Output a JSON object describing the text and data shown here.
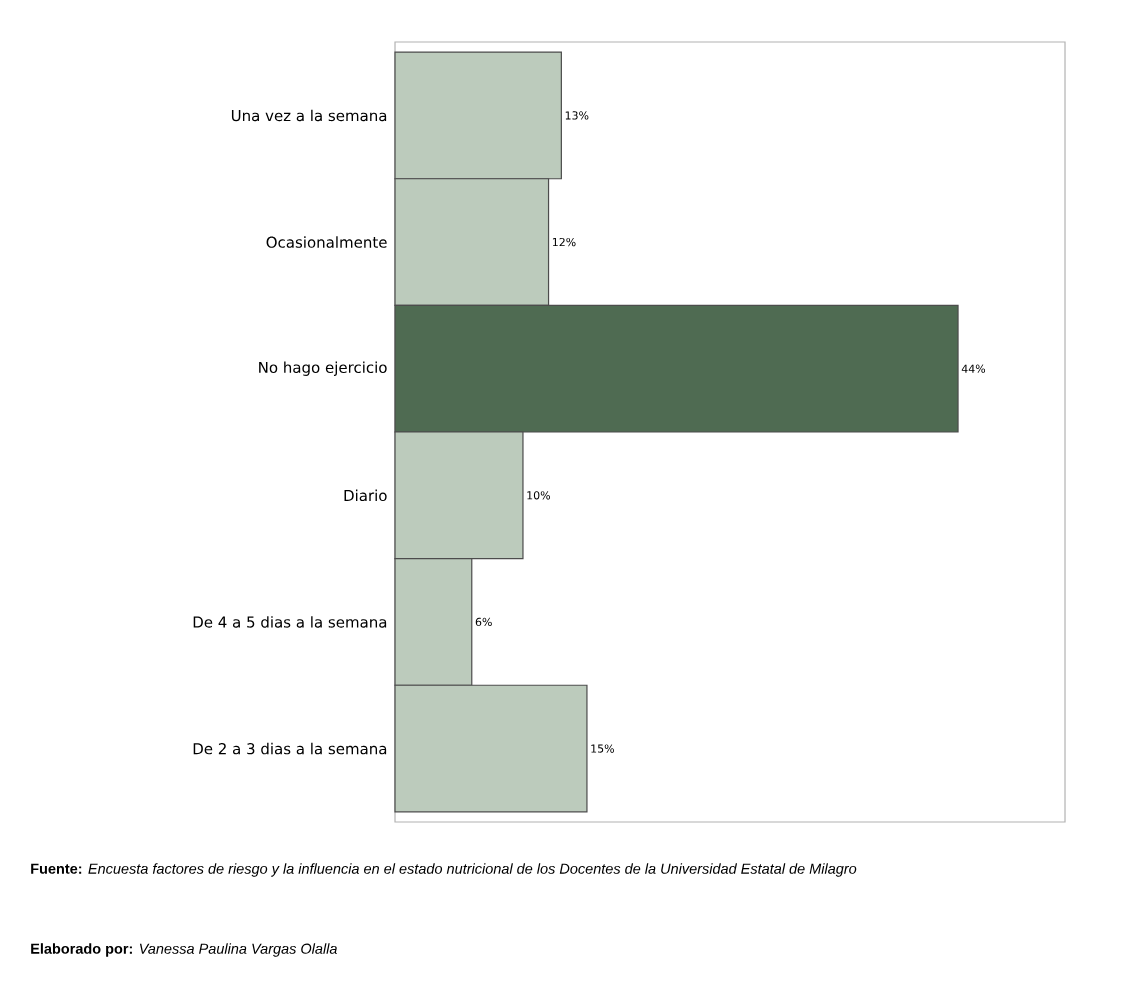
{
  "chart_data": {
    "type": "bar",
    "orientation": "horizontal",
    "categories": [
      "Una vez a la semana",
      "Ocasionalmente",
      "No hago ejercicio",
      "Diario",
      "De 4 a 5 dias a la semana",
      "De 2 a 3 dias a la semana"
    ],
    "values": [
      13,
      12,
      44,
      10,
      6,
      15
    ],
    "value_labels": [
      "13%",
      "12%",
      "44%",
      "10%",
      "6%",
      "15%"
    ],
    "colors": [
      "#bccbbc",
      "#bccbbc",
      "#4f6b52",
      "#bccbbc",
      "#bccbbc",
      "#bccbbc"
    ],
    "annotations": [
      "**Fuente:** *Encuesta factores de riesgo y la influencia en el estado nutricional de los Docentes de la Universidad Estatal de Milagro*",
      "**Elaborado por:** *Vanessa Paulina Vargas Olalla*"
    ]
  }
}
